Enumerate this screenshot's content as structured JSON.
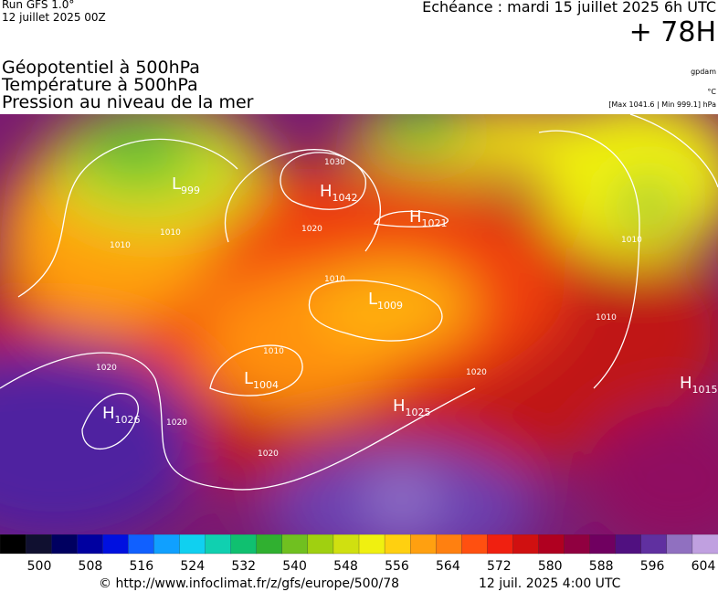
{
  "header": {
    "run": "Run GFS 1.0°",
    "run_date": "12 juillet 2025 00Z",
    "echeance": "Echéance : mardi 15 juillet 2025 6h UTC",
    "lead": "+ 78H",
    "titles": [
      "Géopotentiel à 500hPa",
      "Température à 500hPa",
      "Pression au niveau de la mer"
    ],
    "units": [
      "gpdam",
      "°C",
      "[Max 1041.6 | Min 999.1] hPa"
    ]
  },
  "map": {
    "centers": [
      {
        "letter": "H",
        "value": 1042
      },
      {
        "letter": "H",
        "value": 1021
      },
      {
        "letter": "L",
        "value": 999
      },
      {
        "letter": "L",
        "value": 1009
      },
      {
        "letter": "L",
        "value": 1004
      },
      {
        "letter": "H",
        "value": 1026
      },
      {
        "letter": "H",
        "value": 1025
      },
      {
        "letter": "H",
        "value": 1015
      }
    ],
    "isobar_labels": [
      1030,
      1020,
      1010,
      1010,
      1010,
      1010,
      1020,
      1020,
      1020,
      1010,
      1010,
      1020
    ]
  },
  "colorbar": {
    "ticks": [
      500,
      508,
      516,
      524,
      532,
      540,
      548,
      556,
      564,
      572,
      580,
      588,
      596,
      604
    ],
    "colors": [
      "#000000",
      "#101030",
      "#000060",
      "#0000a0",
      "#0010e0",
      "#1060ff",
      "#10a0ff",
      "#10d0f0",
      "#10d0b0",
      "#10c070",
      "#30b030",
      "#70c020",
      "#a0d010",
      "#d0e010",
      "#f0f010",
      "#ffd010",
      "#ffa010",
      "#ff8010",
      "#ff5010",
      "#f02010",
      "#d01010",
      "#b00020",
      "#900040",
      "#700060",
      "#501080",
      "#6030a0",
      "#9070c0",
      "#c0a0e0"
    ]
  },
  "footer": {
    "url": "© http://www.infoclimat.fr/z/gfs/europe/500/78",
    "date": "12 juil. 2025  4:00 UTC"
  }
}
